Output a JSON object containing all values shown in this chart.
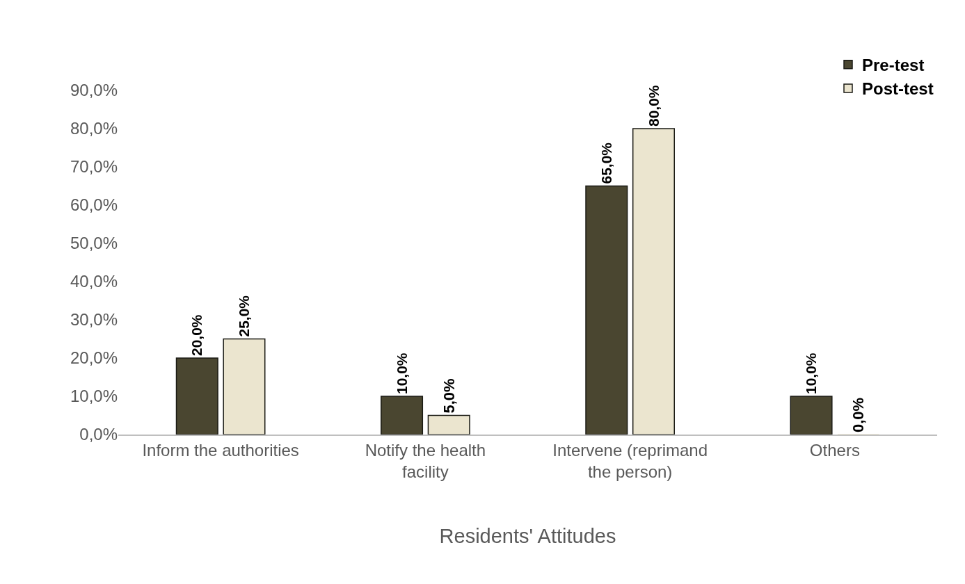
{
  "chart_data": {
    "type": "bar",
    "xlabel": "Residents' Attitudes",
    "categories": [
      "Inform the authorities",
      "Notify the health facility",
      "Intervene (reprimand the person)",
      "Others"
    ],
    "series": [
      {
        "name": "Pre-test",
        "color": "#4a4630",
        "values": [
          20,
          10,
          65,
          10
        ],
        "value_labels": [
          "20,0%",
          "10,0%",
          "65,0%",
          "10,0%"
        ]
      },
      {
        "name": "Post-test",
        "color": "#ebe5cf",
        "values": [
          25,
          5,
          80,
          0
        ],
        "value_labels": [
          "25,0%",
          "5,0%",
          "80,0%",
          "0,0%"
        ]
      }
    ],
    "ylim": [
      0,
      90
    ],
    "yticks": [
      {
        "value": 0,
        "label": "0,0%"
      },
      {
        "value": 10,
        "label": "10,0%"
      },
      {
        "value": 20,
        "label": "20,0%"
      },
      {
        "value": 30,
        "label": "30,0%"
      },
      {
        "value": 40,
        "label": "40,0%"
      },
      {
        "value": 50,
        "label": "50,0%"
      },
      {
        "value": 60,
        "label": "60,0%"
      },
      {
        "value": 70,
        "label": "70,0%"
      },
      {
        "value": 80,
        "label": "80,0%"
      },
      {
        "value": 90,
        "label": "90,0%"
      }
    ],
    "grid": false,
    "legend": "top right"
  }
}
